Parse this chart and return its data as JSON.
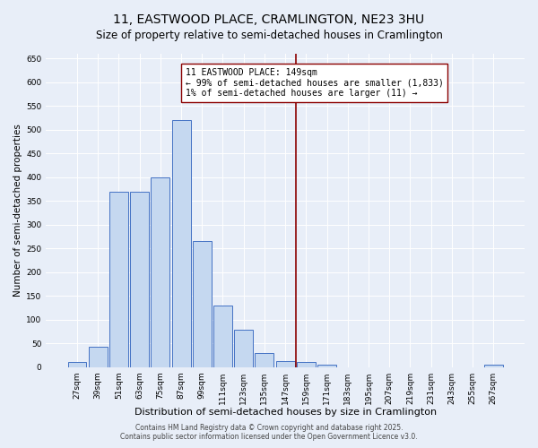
{
  "title": "11, EASTWOOD PLACE, CRAMLINGTON, NE23 3HU",
  "subtitle": "Size of property relative to semi-detached houses in Cramlington",
  "xlabel": "Distribution of semi-detached houses by size in Cramlington",
  "ylabel": "Number of semi-detached properties",
  "categories": [
    "27sqm",
    "39sqm",
    "51sqm",
    "63sqm",
    "75sqm",
    "87sqm",
    "99sqm",
    "111sqm",
    "123sqm",
    "135sqm",
    "147sqm",
    "159sqm",
    "171sqm",
    "183sqm",
    "195sqm",
    "207sqm",
    "219sqm",
    "231sqm",
    "243sqm",
    "255sqm",
    "267sqm"
  ],
  "values": [
    10,
    42,
    370,
    370,
    400,
    520,
    265,
    130,
    78,
    30,
    12,
    10,
    4,
    0,
    0,
    0,
    0,
    0,
    0,
    0,
    5
  ],
  "bar_color": "#c5d8f0",
  "bar_edge_color": "#4472c4",
  "background_color": "#e8eef8",
  "vline_x_index": 10,
  "vline_color": "#8b0000",
  "ylim": [
    0,
    660
  ],
  "yticks": [
    0,
    50,
    100,
    150,
    200,
    250,
    300,
    350,
    400,
    450,
    500,
    550,
    600,
    650
  ],
  "annotation_title": "11 EASTWOOD PLACE: 149sqm",
  "annotation_line1": "← 99% of semi-detached houses are smaller (1,833)",
  "annotation_line2": "1% of semi-detached houses are larger (11) →",
  "annotation_box_edge": "#8b0000",
  "footer1": "Contains HM Land Registry data © Crown copyright and database right 2025.",
  "footer2": "Contains public sector information licensed under the Open Government Licence v3.0.",
  "title_fontsize": 10,
  "subtitle_fontsize": 8.5,
  "xlabel_fontsize": 8,
  "ylabel_fontsize": 7.5,
  "tick_fontsize": 6.5,
  "annotation_fontsize": 7,
  "footer_fontsize": 5.5
}
